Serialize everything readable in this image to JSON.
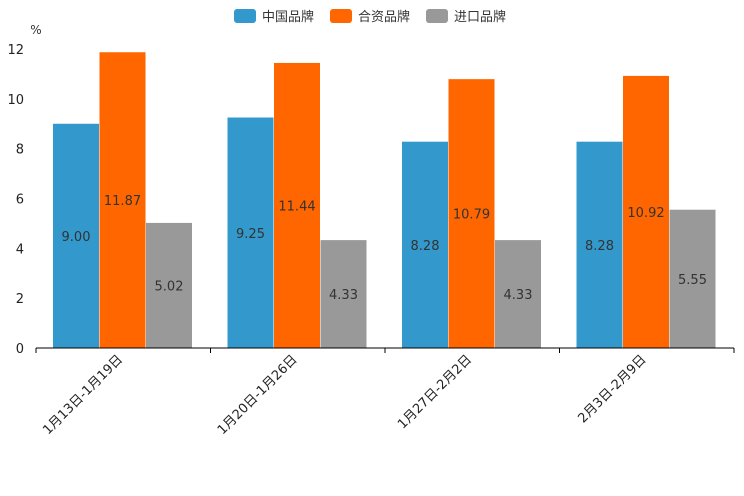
{
  "chart_data": {
    "type": "bar",
    "title": "",
    "unit_label": "%",
    "xlabel": "",
    "ylabel": "%",
    "ylim": [
      0,
      12
    ],
    "yticks": [
      0,
      2,
      4,
      6,
      8,
      10,
      12
    ],
    "categories": [
      "1月13日-1月19日",
      "1月20日-1月26日",
      "1月27日-2月2日",
      "2月3日-2月9日"
    ],
    "series": [
      {
        "name": "中国品牌",
        "color": "#3399cc",
        "values": [
          9.0,
          9.25,
          8.28,
          8.28
        ],
        "labels": [
          "9.00",
          "9.25",
          "8.28",
          "8.28"
        ]
      },
      {
        "name": "合资品牌",
        "color": "#ff6600",
        "values": [
          11.87,
          11.44,
          10.79,
          10.92
        ],
        "labels": [
          "11.87",
          "11.44",
          "10.79",
          "10.92"
        ]
      },
      {
        "name": "进口品牌",
        "color": "#999999",
        "values": [
          5.02,
          4.33,
          4.33,
          5.55
        ],
        "labels": [
          "5.02",
          "4.33",
          "4.33",
          "5.55"
        ]
      }
    ],
    "legend_position": "top-center",
    "grid": false
  }
}
